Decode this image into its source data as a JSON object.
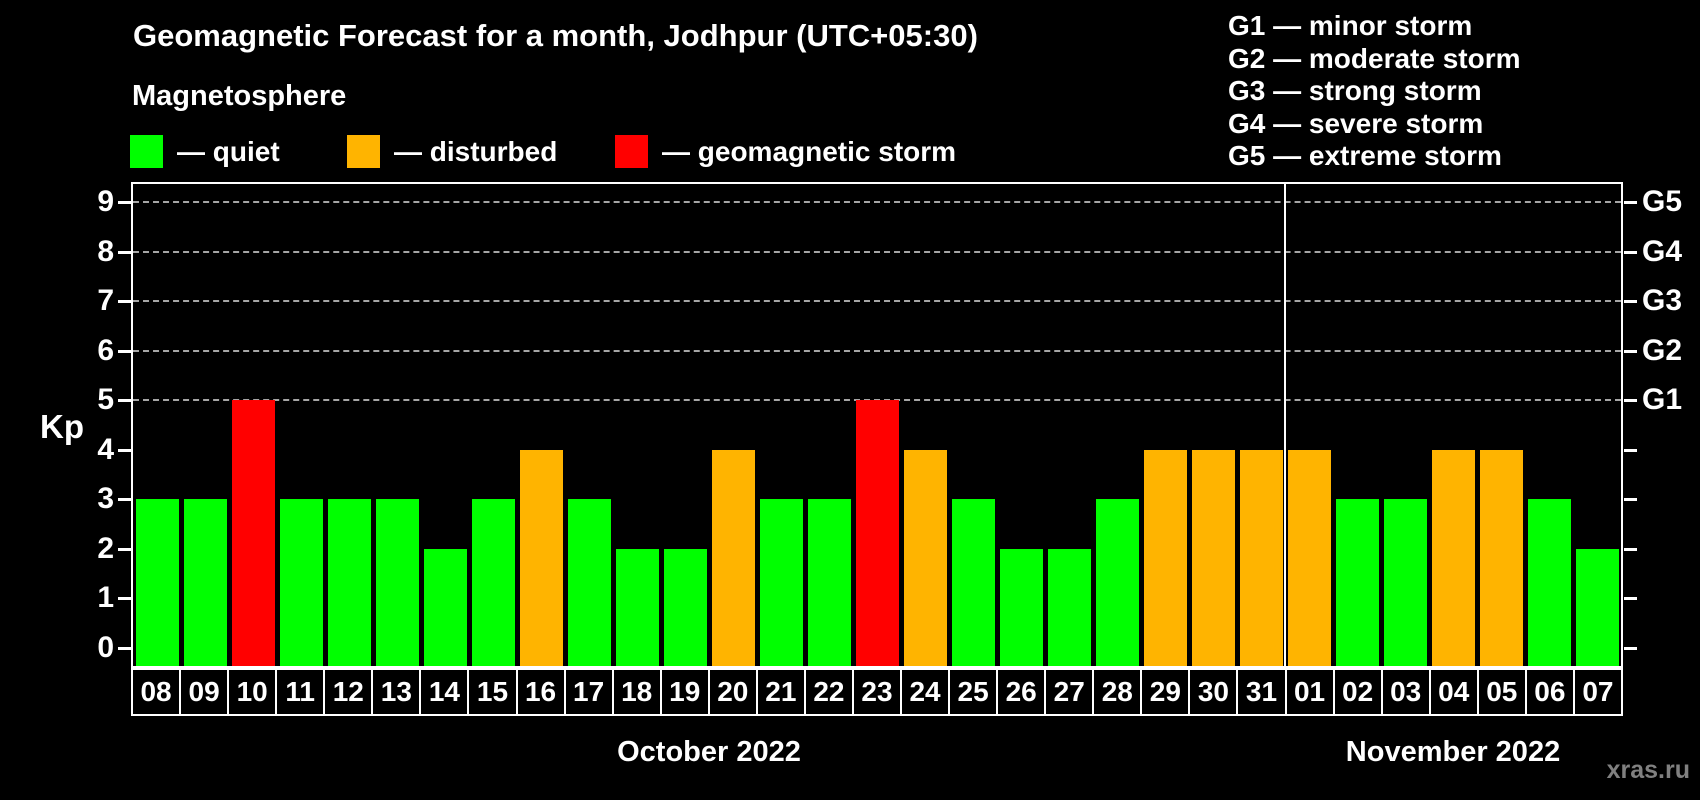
{
  "header": {
    "title": "Geomagnetic Forecast for a month, Jodhpur (UTC+05:30)",
    "subtitle": "Magnetosphere"
  },
  "legend": {
    "items": [
      {
        "key": "quiet",
        "label": "— quiet",
        "color": "#00ff00",
        "x": 130
      },
      {
        "key": "disturbed",
        "label": "— disturbed",
        "color": "#ffb400",
        "x": 347
      },
      {
        "key": "storm",
        "label": "— geomagnetic storm",
        "color": "#ff0000",
        "x": 615
      }
    ]
  },
  "storm_scale_legend": {
    "items": [
      {
        "label": "G1 — minor storm"
      },
      {
        "label": "G2 — moderate storm"
      },
      {
        "label": "G3 — strong storm"
      },
      {
        "label": "G4 — severe storm"
      },
      {
        "label": "G5 — extreme storm"
      }
    ]
  },
  "watermark": "xras.ru",
  "chart_data": {
    "type": "bar",
    "title": "Geomagnetic Forecast for a month, Jodhpur (UTC+05:30)",
    "ylabel": "Kp",
    "ylim": [
      0,
      9.4
    ],
    "yticks": [
      0,
      1,
      2,
      3,
      4,
      5,
      6,
      7,
      8,
      9
    ],
    "grid_levels": [
      5,
      6,
      7,
      8,
      9
    ],
    "grid_style": "dashed",
    "legend_position": "top",
    "right_axis": [
      {
        "level": 5,
        "label": "G1"
      },
      {
        "level": 6,
        "label": "G2"
      },
      {
        "level": 7,
        "label": "G3"
      },
      {
        "level": 8,
        "label": "G4"
      },
      {
        "level": 9,
        "label": "G5"
      }
    ],
    "status_colors": {
      "quiet": "#00ff00",
      "disturbed": "#ffb400",
      "storm": "#ff0000"
    },
    "months": [
      {
        "label": "October 2022",
        "day_count": 24
      },
      {
        "label": "November 2022",
        "day_count": 7
      }
    ],
    "days": [
      {
        "date": "08",
        "kp": 3,
        "status": "quiet"
      },
      {
        "date": "09",
        "kp": 3,
        "status": "quiet"
      },
      {
        "date": "10",
        "kp": 5,
        "status": "storm"
      },
      {
        "date": "11",
        "kp": 3,
        "status": "quiet"
      },
      {
        "date": "12",
        "kp": 3,
        "status": "quiet"
      },
      {
        "date": "13",
        "kp": 3,
        "status": "quiet"
      },
      {
        "date": "14",
        "kp": 2,
        "status": "quiet"
      },
      {
        "date": "15",
        "kp": 3,
        "status": "quiet"
      },
      {
        "date": "16",
        "kp": 4,
        "status": "disturbed"
      },
      {
        "date": "17",
        "kp": 3,
        "status": "quiet"
      },
      {
        "date": "18",
        "kp": 2,
        "status": "quiet"
      },
      {
        "date": "19",
        "kp": 2,
        "status": "quiet"
      },
      {
        "date": "20",
        "kp": 4,
        "status": "disturbed"
      },
      {
        "date": "21",
        "kp": 3,
        "status": "quiet"
      },
      {
        "date": "22",
        "kp": 3,
        "status": "quiet"
      },
      {
        "date": "23",
        "kp": 5,
        "status": "storm"
      },
      {
        "date": "24",
        "kp": 4,
        "status": "disturbed"
      },
      {
        "date": "25",
        "kp": 3,
        "status": "quiet"
      },
      {
        "date": "26",
        "kp": 2,
        "status": "quiet"
      },
      {
        "date": "27",
        "kp": 2,
        "status": "quiet"
      },
      {
        "date": "28",
        "kp": 3,
        "status": "quiet"
      },
      {
        "date": "29",
        "kp": 4,
        "status": "disturbed"
      },
      {
        "date": "30",
        "kp": 4,
        "status": "disturbed"
      },
      {
        "date": "31",
        "kp": 4,
        "status": "disturbed"
      },
      {
        "date": "01",
        "kp": 4,
        "status": "disturbed"
      },
      {
        "date": "02",
        "kp": 3,
        "status": "quiet"
      },
      {
        "date": "03",
        "kp": 3,
        "status": "quiet"
      },
      {
        "date": "04",
        "kp": 4,
        "status": "disturbed"
      },
      {
        "date": "05",
        "kp": 4,
        "status": "disturbed"
      },
      {
        "date": "06",
        "kp": 3,
        "status": "quiet"
      },
      {
        "date": "07",
        "kp": 2,
        "status": "quiet"
      }
    ]
  }
}
